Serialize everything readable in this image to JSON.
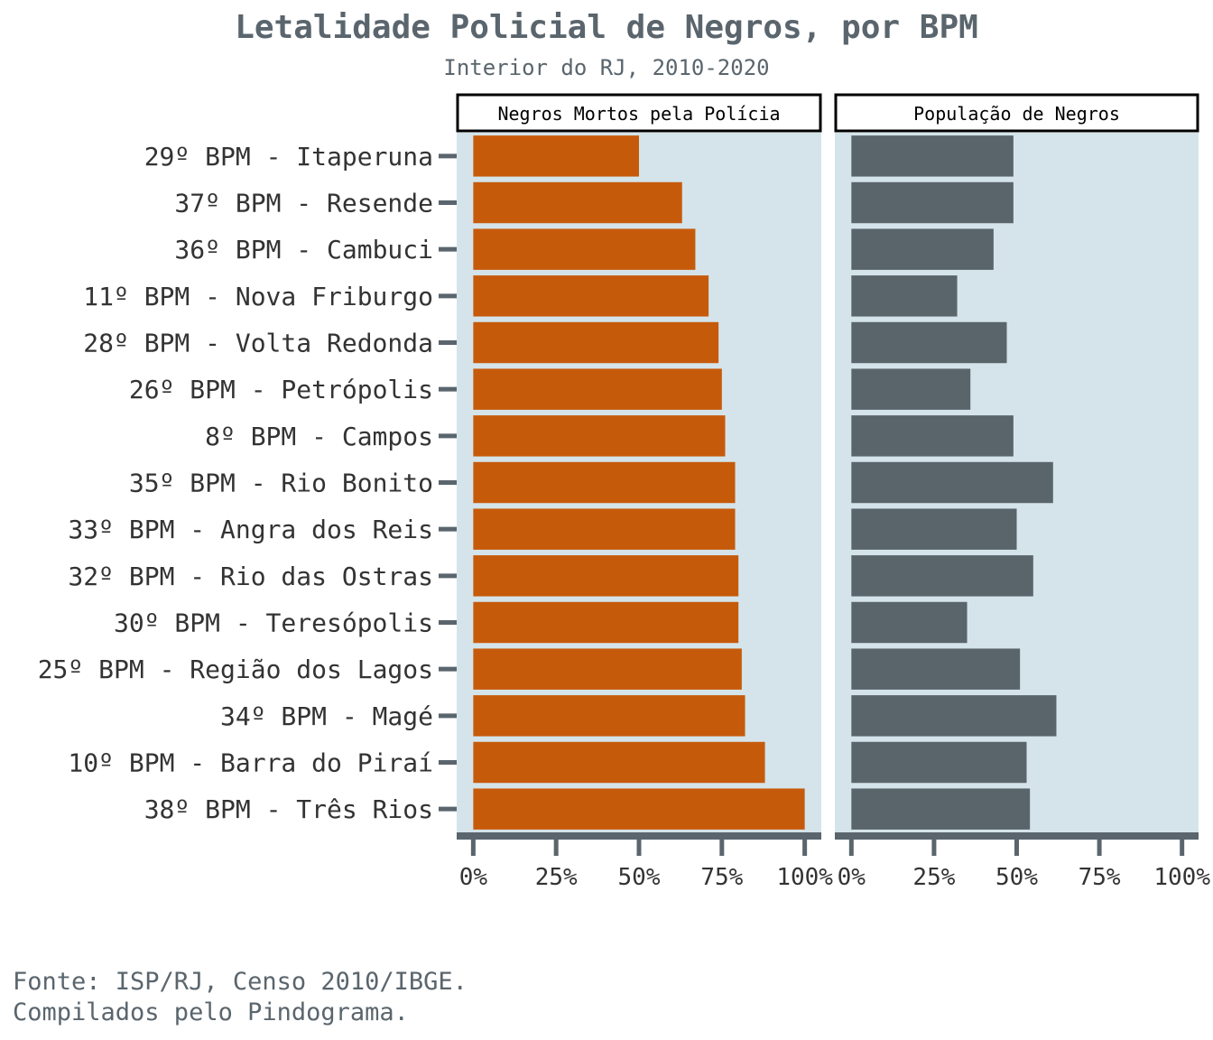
{
  "chart_data": {
    "type": "bar",
    "orientation": "horizontal",
    "title": "Letalidade Policial de Negros, por BPM",
    "subtitle": "Interior do RJ, 2010-2020",
    "caption_lines": [
      "Fonte: ISP/RJ, Censo 2010/IBGE.",
      "Compilados pelo Pindograma."
    ],
    "categories": [
      "29º BPM - Itaperuna",
      "37º BPM - Resende",
      "36º BPM - Cambuci",
      "11º BPM - Nova Friburgo",
      "28º BPM - Volta Redonda",
      "26º BPM - Petrópolis",
      "8º BPM - Campos",
      "35º BPM - Rio Bonito",
      "33º BPM - Angra dos Reis",
      "32º BPM - Rio das Ostras",
      "30º BPM - Teresópolis",
      "25º BPM - Região dos Lagos",
      "34º BPM - Magé",
      "10º BPM - Barra do Piraí",
      "38º BPM - Três Rios"
    ],
    "xlim": [
      0,
      1
    ],
    "x_ticks": [
      "0%",
      "25%",
      "50%",
      "75%",
      "100%"
    ],
    "panel_background": "#d4e4ea",
    "series": [
      {
        "name": "Negros Mortos pela Polícia",
        "color": "#c65a0b",
        "values": [
          0.5,
          0.63,
          0.67,
          0.71,
          0.74,
          0.75,
          0.76,
          0.79,
          0.79,
          0.8,
          0.8,
          0.81,
          0.82,
          0.88,
          1.0
        ]
      },
      {
        "name": "População de Negros",
        "color": "#5a656b",
        "values": [
          0.49,
          0.49,
          0.43,
          0.32,
          0.47,
          0.36,
          0.49,
          0.61,
          0.5,
          0.55,
          0.35,
          0.51,
          0.62,
          0.53,
          0.54
        ]
      }
    ]
  }
}
